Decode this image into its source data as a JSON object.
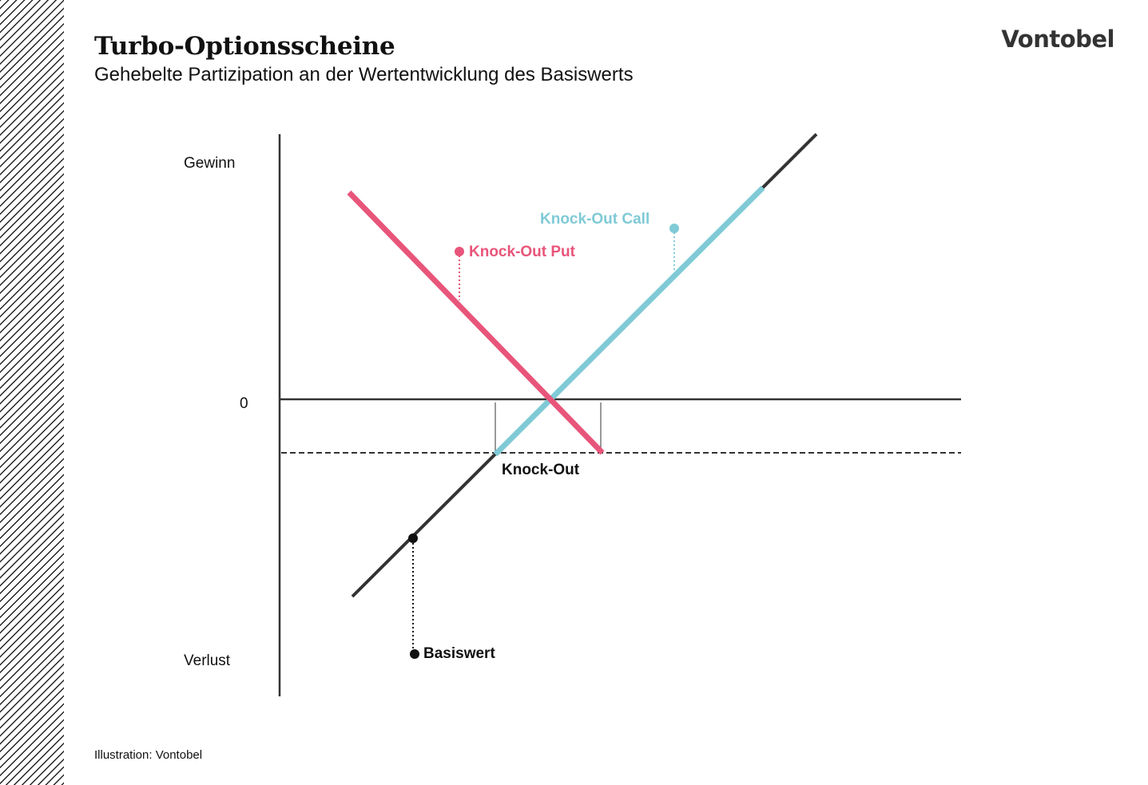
{
  "header": {
    "title": "Turbo-Optionsscheine",
    "subtitle": "Gehebelte Partizipation an der Wertentwicklung des Basiswerts",
    "logo": "Vontobel"
  },
  "diagram": {
    "y_axis_top_label": "Gewinn",
    "y_axis_zero_label": "0",
    "y_axis_bottom_label": "Verlust",
    "knock_out_put_label": "Knock-Out Put",
    "knock_out_call_label": "Knock-Out Call",
    "knock_out_level_label": "Knock-Out",
    "underlying_label": "Basiswert"
  },
  "colors": {
    "put": "#e8557a",
    "call": "#7fcad6",
    "underlying": "#333333",
    "axis": "#333333"
  },
  "footer": {
    "credit": "Illustration: Vontobel"
  }
}
